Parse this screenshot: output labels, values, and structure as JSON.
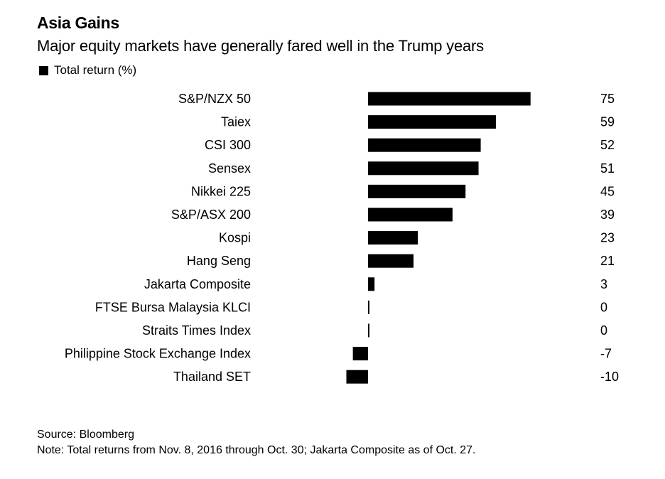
{
  "chart_data": {
    "type": "bar",
    "orientation": "horizontal",
    "title": "Asia Gains",
    "subtitle": "Major equity markets have generally fared well in the Trump years",
    "legend": [
      "Total return (%)"
    ],
    "categories": [
      "S&P/NZX 50",
      "Taiex",
      "CSI 300",
      "Sensex",
      "Nikkei 225",
      "S&P/ASX 200",
      "Kospi",
      "Hang Seng",
      "Jakarta Composite",
      "FTSE Bursa Malaysia KLCI",
      "Straits Times Index",
      "Philippine Stock Exchange Index",
      "Thailand SET"
    ],
    "values": [
      75,
      59,
      52,
      51,
      45,
      39,
      23,
      21,
      3,
      0.4,
      0.4,
      -7,
      -10
    ],
    "value_labels": [
      "75",
      "59",
      "52",
      "51",
      "45",
      "39",
      "23",
      "21",
      "3",
      "0",
      "0",
      "-7",
      "-10"
    ],
    "xlim": [
      -10,
      75
    ],
    "color": "#000000",
    "source": "Source: Bloomberg",
    "note": "Note: Total returns from Nov. 8, 2016 through Oct. 30; Jakarta Composite as of Oct. 27."
  }
}
